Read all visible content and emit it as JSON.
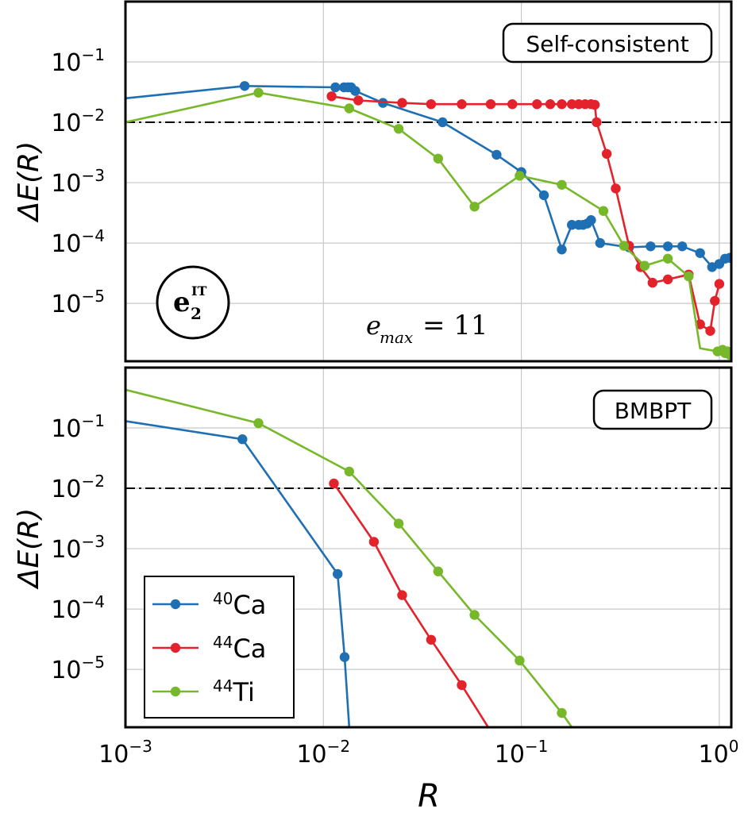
{
  "colors": {
    "ca40": "#1f6fb4",
    "ca44": "#e3222b",
    "ti44": "#76b82a"
  },
  "chart_data": [
    {
      "type": "line",
      "panel": "top",
      "box_label": "Self-consistent",
      "badge_label": "e",
      "badge_superscript": "IT",
      "badge_subscript": "2",
      "annotation_var": "e",
      "annotation_sub": "max",
      "annotation_rest": "= 11",
      "ylabel": "ΔE(R)",
      "x_scale": "log",
      "y_scale": "log",
      "xlim": [
        0.001,
        1.15
      ],
      "ylim": [
        1.1e-06,
        1
      ],
      "threshold": 0.01,
      "grid": true,
      "y_ticks": [
        {
          "value": 0.1,
          "base": "10",
          "exp": "−1"
        },
        {
          "value": 0.01,
          "base": "10",
          "exp": "−2"
        },
        {
          "value": 0.001,
          "base": "10",
          "exp": "−3"
        },
        {
          "value": 0.0001,
          "base": "10",
          "exp": "−4"
        },
        {
          "value": 1e-05,
          "base": "10",
          "exp": "−5"
        }
      ],
      "series": [
        {
          "name": "⁴⁰Ca",
          "color_key": "ca40",
          "points": [
            [
              0.001,
              0.025,
              0
            ],
            [
              0.004,
              0.04,
              1
            ],
            [
              0.0115,
              0.038,
              1
            ],
            [
              0.0127,
              0.038,
              1
            ],
            [
              0.0133,
              0.038,
              1
            ],
            [
              0.0138,
              0.038,
              1
            ],
            [
              0.0145,
              0.033,
              1
            ],
            [
              0.02,
              0.021,
              1
            ],
            [
              0.04,
              0.01,
              1
            ],
            [
              0.075,
              0.0029,
              1
            ],
            [
              0.1,
              0.0015,
              1
            ],
            [
              0.13,
              0.00062,
              1
            ],
            [
              0.16,
              7.8e-05,
              1
            ],
            [
              0.18,
              0.0002,
              1
            ],
            [
              0.195,
              0.0002,
              1
            ],
            [
              0.205,
              0.0002,
              1
            ],
            [
              0.215,
              0.00021,
              1
            ],
            [
              0.225,
              0.00024,
              1
            ],
            [
              0.25,
              0.0001,
              1
            ],
            [
              0.35,
              8.5e-05,
              1
            ],
            [
              0.45,
              8.8e-05,
              1
            ],
            [
              0.55,
              8.8e-05,
              1
            ],
            [
              0.65,
              8.8e-05,
              1
            ],
            [
              0.8,
              6.8e-05,
              1
            ],
            [
              0.92,
              4e-05,
              1
            ],
            [
              1.0,
              4.5e-05,
              1
            ],
            [
              1.07,
              5.5e-05,
              1
            ],
            [
              1.13,
              5.7e-05,
              1
            ]
          ]
        },
        {
          "name": "⁴⁴Ca",
          "color_key": "ca44",
          "points": [
            [
              0.011,
              0.027,
              1
            ],
            [
              0.015,
              0.023,
              1
            ],
            [
              0.025,
              0.021,
              1
            ],
            [
              0.035,
              0.02,
              1
            ],
            [
              0.05,
              0.02,
              1
            ],
            [
              0.07,
              0.02,
              1
            ],
            [
              0.09,
              0.02,
              1
            ],
            [
              0.12,
              0.02,
              1
            ],
            [
              0.14,
              0.02,
              1
            ],
            [
              0.16,
              0.02,
              1
            ],
            [
              0.18,
              0.02,
              1
            ],
            [
              0.195,
              0.02,
              1
            ],
            [
              0.21,
              0.02,
              1
            ],
            [
              0.225,
              0.02,
              1
            ],
            [
              0.235,
              0.0195,
              1
            ],
            [
              0.24,
              0.01,
              1
            ],
            [
              0.27,
              0.003,
              1
            ],
            [
              0.3,
              0.0008,
              1
            ],
            [
              0.35,
              9e-05,
              1
            ],
            [
              0.4,
              4e-05,
              1
            ],
            [
              0.46,
              2.2e-05,
              1
            ],
            [
              0.55,
              2.5e-05,
              1
            ],
            [
              0.7,
              3e-05,
              1
            ],
            [
              0.8,
              4.5e-06,
              1
            ],
            [
              0.9,
              3.5e-06,
              1
            ],
            [
              0.95,
              1.1e-05,
              1
            ],
            [
              1.0,
              2.1e-05,
              1
            ]
          ]
        },
        {
          "name": "⁴⁴Ti",
          "color_key": "ti44",
          "points": [
            [
              0.001,
              0.01,
              0
            ],
            [
              0.0047,
              0.031,
              1
            ],
            [
              0.0135,
              0.017,
              1
            ],
            [
              0.024,
              0.0078,
              1
            ],
            [
              0.038,
              0.0025,
              1
            ],
            [
              0.058,
              0.0004,
              1
            ],
            [
              0.098,
              0.0013,
              1
            ],
            [
              0.16,
              0.00092,
              1
            ],
            [
              0.26,
              0.00034,
              1
            ],
            [
              0.33,
              9e-05,
              1
            ],
            [
              0.42,
              4.2e-05,
              1
            ],
            [
              0.55,
              5.5e-05,
              1
            ],
            [
              0.7,
              2.8e-05,
              1
            ],
            [
              0.8,
              1.8e-06,
              0
            ],
            [
              0.98,
              1.6e-06,
              1
            ],
            [
              1.04,
              1.7e-06,
              1
            ],
            [
              1.07,
              1.5e-06,
              1
            ],
            [
              1.1,
              1.6e-06,
              1
            ],
            [
              1.13,
              1.4e-06,
              1
            ]
          ]
        }
      ]
    },
    {
      "type": "line",
      "panel": "bottom",
      "box_label": "BMBPT",
      "xlabel": "R",
      "ylabel": "ΔE(R)",
      "x_scale": "log",
      "y_scale": "log",
      "xlim": [
        0.001,
        1.15
      ],
      "ylim": [
        1.1e-06,
        1
      ],
      "threshold": 0.01,
      "grid": true,
      "x_ticks": [
        {
          "value": 0.001,
          "base": "10",
          "exp": "−3"
        },
        {
          "value": 0.01,
          "base": "10",
          "exp": "−2"
        },
        {
          "value": 0.1,
          "base": "10",
          "exp": "−1"
        },
        {
          "value": 1,
          "base": "10",
          "exp": "0"
        }
      ],
      "y_ticks": [
        {
          "value": 0.1,
          "base": "10",
          "exp": "−1"
        },
        {
          "value": 0.01,
          "base": "10",
          "exp": "−2"
        },
        {
          "value": 0.001,
          "base": "10",
          "exp": "−3"
        },
        {
          "value": 0.0001,
          "base": "10",
          "exp": "−4"
        },
        {
          "value": 1e-05,
          "base": "10",
          "exp": "−5"
        }
      ],
      "legend": {
        "position": "lower-left",
        "entries": [
          {
            "mass": "40",
            "element": "Ca",
            "color_key": "ca40"
          },
          {
            "mass": "44",
            "element": "Ca",
            "color_key": "ca44"
          },
          {
            "mass": "44",
            "element": "Ti",
            "color_key": "ti44"
          }
        ]
      },
      "series": [
        {
          "name": "⁴⁰Ca",
          "color_key": "ca40",
          "points": [
            [
              0.001,
              0.13,
              0
            ],
            [
              0.0039,
              0.065,
              1
            ],
            [
              0.0118,
              0.00038,
              1
            ],
            [
              0.0128,
              1.6e-05,
              1
            ],
            [
              0.0135,
              1.1e-06,
              0
            ]
          ]
        },
        {
          "name": "⁴⁴Ca",
          "color_key": "ca44",
          "points": [
            [
              0.0113,
              0.012,
              1
            ],
            [
              0.018,
              0.0013,
              1
            ],
            [
              0.025,
              0.00017,
              1
            ],
            [
              0.035,
              3.1e-05,
              1
            ],
            [
              0.05,
              5.5e-06,
              1
            ],
            [
              0.068,
              1.1e-06,
              0
            ]
          ]
        },
        {
          "name": "⁴⁴Ti",
          "color_key": "ti44",
          "points": [
            [
              0.001,
              0.43,
              0
            ],
            [
              0.0047,
              0.12,
              1
            ],
            [
              0.0135,
              0.019,
              1
            ],
            [
              0.024,
              0.0026,
              1
            ],
            [
              0.038,
              0.00042,
              1
            ],
            [
              0.058,
              8e-05,
              1
            ],
            [
              0.098,
              1.4e-05,
              1
            ],
            [
              0.16,
              1.9e-06,
              1
            ],
            [
              0.18,
              1.1e-06,
              0
            ]
          ]
        }
      ]
    }
  ]
}
